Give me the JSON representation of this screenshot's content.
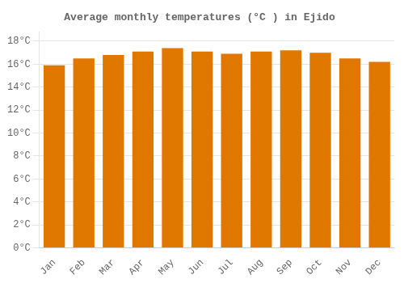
{
  "chart_data": {
    "type": "bar",
    "title": "Average monthly temperatures (°C ) in Ejido",
    "categories": [
      "Jan",
      "Feb",
      "Mar",
      "Apr",
      "May",
      "Jun",
      "Jul",
      "Aug",
      "Sep",
      "Oct",
      "Nov",
      "Dec"
    ],
    "values": [
      15.9,
      16.5,
      16.8,
      17.1,
      17.4,
      17.1,
      16.9,
      17.1,
      17.2,
      17.0,
      16.5,
      16.2
    ],
    "color": "#E07800",
    "ylim": [
      0,
      18.8
    ],
    "yticks": [
      {
        "value": 0,
        "label": "0°C"
      },
      {
        "value": 2,
        "label": "2°C"
      },
      {
        "value": 4,
        "label": "4°C"
      },
      {
        "value": 6,
        "label": "6°C"
      },
      {
        "value": 8,
        "label": "8°C"
      },
      {
        "value": 10,
        "label": "10°C"
      },
      {
        "value": 12,
        "label": "12°C"
      },
      {
        "value": 14,
        "label": "14°C"
      },
      {
        "value": 16,
        "label": "16°C"
      },
      {
        "value": 18,
        "label": "18°C"
      }
    ],
    "grid": true
  }
}
